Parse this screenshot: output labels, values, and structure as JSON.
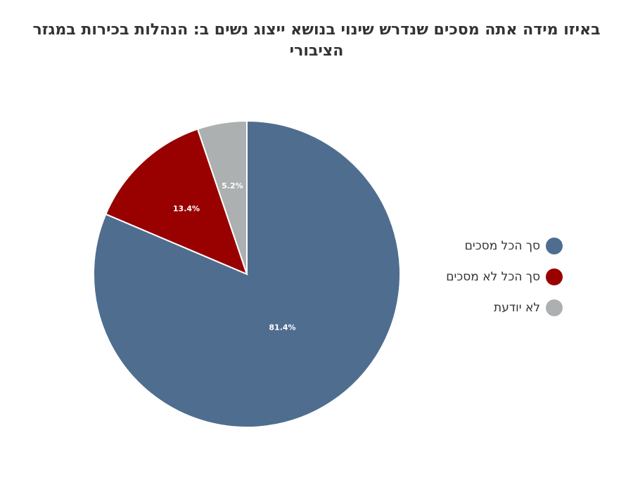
{
  "chart_data": {
    "type": "pie",
    "title": "באיזו מידה אתה מסכים שנדרש שינוי בנושא ייצוג נשים ב: הנהלות בכירות במגזר הציבורי",
    "legend_position": "right",
    "slices": [
      {
        "name": "סך הכל מסכים",
        "value": 81.4,
        "label": "81.4%",
        "color": "#4f6d8f"
      },
      {
        "name": "סך הכל לא מסכים",
        "value": 13.4,
        "label": "13.4%",
        "color": "#990000"
      },
      {
        "name": "לא יודעת",
        "value": 5.2,
        "label": "5.2%",
        "color": "#acb0b0"
      }
    ]
  }
}
